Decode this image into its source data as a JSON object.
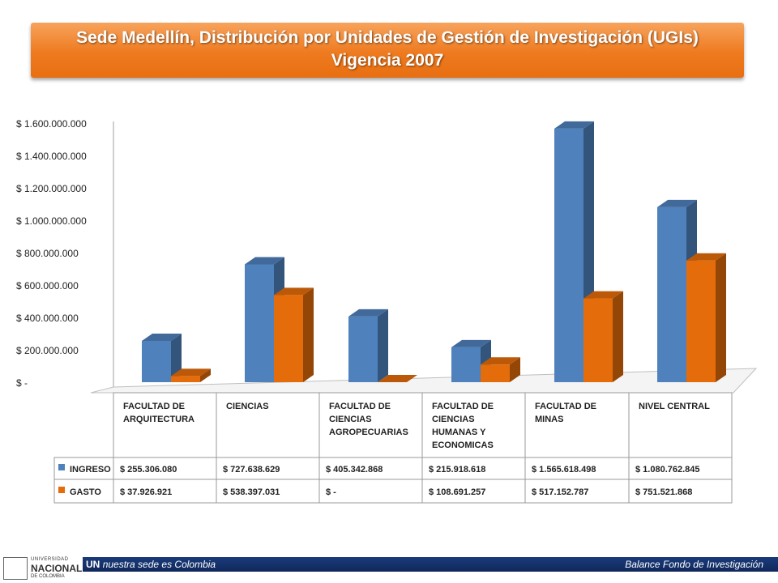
{
  "title": {
    "line1": "Sede Medellín, Distribución por Unidades de Gestión de Investigación (UGIs)",
    "line2": "Vigencia 2007"
  },
  "chart_data": {
    "type": "bar",
    "categories": [
      [
        "FACULTAD DE",
        "ARQUITECTURA"
      ],
      [
        "CIENCIAS"
      ],
      [
        "FACULTAD DE",
        "CIENCIAS",
        "AGROPECUARIAS"
      ],
      [
        "FACULTAD DE",
        "CIENCIAS",
        "HUMANAS  Y",
        "ECONOMICAS"
      ],
      [
        "FACULTAD DE",
        "MINAS"
      ],
      [
        "NIVEL CENTRAL"
      ]
    ],
    "series": [
      {
        "name": "INGRESO",
        "color": "#4f81bd",
        "values": [
          255306080,
          727638629,
          405342868,
          215918618,
          1565618498,
          1080762845
        ],
        "labels": [
          "$ 255.306.080",
          "$ 727.638.629",
          "$ 405.342.868",
          "$ 215.918.618",
          "$ 1.565.618.498",
          "$ 1.080.762.845"
        ]
      },
      {
        "name": "GASTO",
        "color": "#e46c0a",
        "values": [
          37926921,
          538397031,
          0,
          108691257,
          517152787,
          751521868
        ],
        "labels": [
          "$ 37.926.921",
          "$ 538.397.031",
          "$ -",
          "$ 108.691.257",
          "$ 517.152.787",
          "$ 751.521.868"
        ]
      }
    ],
    "yticks": [
      {
        "value": 0,
        "label": "$ -"
      },
      {
        "value": 200000000,
        "label": "$ 200.000.000"
      },
      {
        "value": 400000000,
        "label": "$ 400.000.000"
      },
      {
        "value": 600000000,
        "label": "$ 600.000.000"
      },
      {
        "value": 800000000,
        "label": "$ 800.000.000"
      },
      {
        "value": 1000000000,
        "label": "$ 1.000.000.000"
      },
      {
        "value": 1200000000,
        "label": "$ 1.200.000.000"
      },
      {
        "value": 1400000000,
        "label": "$ 1.400.000.000"
      },
      {
        "value": 1600000000,
        "label": "$ 1.600.000.000"
      }
    ],
    "ylim": [
      0,
      1600000000
    ],
    "grid": false,
    "legend": "data-table"
  },
  "footer": {
    "brand": "UN",
    "tagline": "nuestra sede es Colombia",
    "right": "Balance Fondo de Investigación",
    "logo_line1": "UNIVERSIDAD",
    "logo_line2": "NACIONAL",
    "logo_line3": "DE COLOMBIA"
  }
}
